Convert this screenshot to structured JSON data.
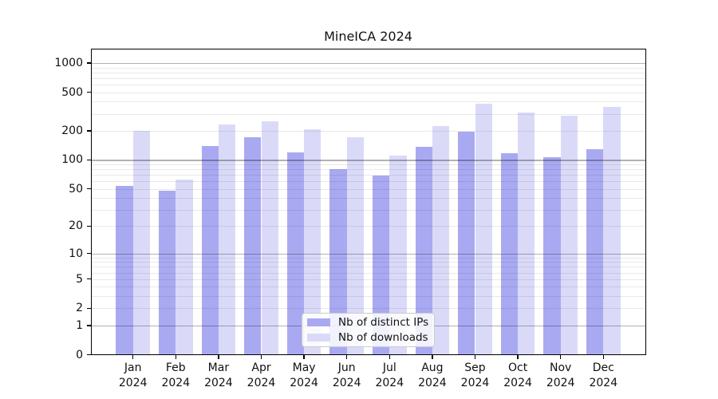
{
  "title": "MineICA 2024",
  "chart_data": {
    "type": "bar",
    "title": "MineICA 2024",
    "categories": [
      "Jan 2024",
      "Feb 2024",
      "Mar 2024",
      "Apr 2024",
      "May 2024",
      "Jun 2024",
      "Jul 2024",
      "Aug 2024",
      "Sep 2024",
      "Oct 2024",
      "Nov 2024",
      "Dec 2024"
    ],
    "months": [
      "Jan",
      "Feb",
      "Mar",
      "Apr",
      "May",
      "Jun",
      "Jul",
      "Aug",
      "Sep",
      "Oct",
      "Nov",
      "Dec"
    ],
    "year": "2024",
    "series": [
      {
        "name": "Nb of distinct IPs",
        "color": "#a9a9f2",
        "values": [
          54,
          48,
          138,
          172,
          120,
          80,
          69,
          137,
          197,
          118,
          106,
          129
        ]
      },
      {
        "name": "Nb of downloads",
        "color": "#dadaf8",
        "values": [
          201,
          63,
          231,
          250,
          208,
          172,
          110,
          226,
          380,
          312,
          288,
          355
        ]
      }
    ],
    "yscale": "log10(1+x)",
    "yticks": [
      0,
      1,
      2,
      5,
      10,
      20,
      50,
      100,
      200,
      500,
      1000
    ],
    "ylim": [
      0,
      1420
    ],
    "xlabel": "",
    "ylabel": "",
    "grid": "both",
    "legend_position": "lower center"
  },
  "colors": {
    "bar_ips": "#a9a9f2",
    "bar_downloads": "#dadaf8",
    "grid_major": "rgba(0,0,0,0.30)",
    "grid_minor": "rgba(0,0,0,0.085)",
    "axis": "#000000",
    "text": "#111111"
  }
}
